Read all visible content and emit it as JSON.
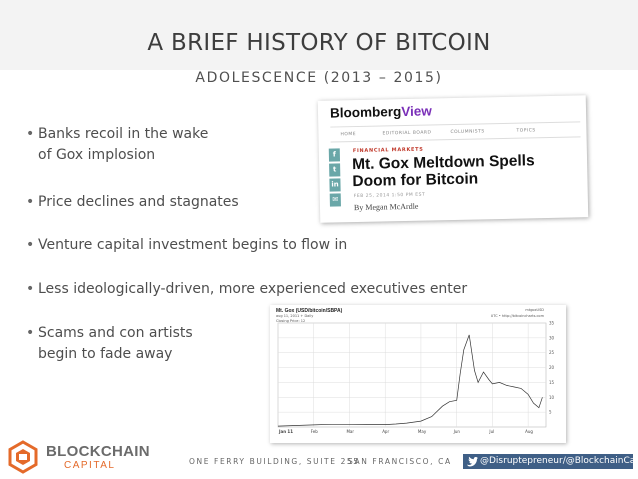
{
  "title": "A BRIEF HISTORY OF BITCOIN",
  "subtitle": "ADOLESCENCE (2013 – 2015)",
  "bullets": [
    {
      "line1": "Banks recoil in the wake",
      "line2": "of Gox implosion"
    },
    {
      "line1": "Price declines and stagnates",
      "line2": ""
    },
    {
      "line1": "Venture capital investment begins to flow in",
      "line2": ""
    },
    {
      "line1": "Less ideologically-driven, more experienced executives enter",
      "line2": ""
    },
    {
      "line1": "Scams and con artists",
      "line2": "begin to fade away"
    }
  ],
  "bloomberg": {
    "logo_main": "Bloomberg",
    "logo_view": "View",
    "nav": [
      "HOME",
      "EDITORIAL BOARD",
      "COLUMNISTS",
      "TOPICS"
    ],
    "social": [
      "f",
      "t",
      "in",
      "✉"
    ],
    "kicker": "FINANCIAL MARKETS",
    "headline": "Mt. Gox Meltdown Spells Doom for Bitcoin",
    "date": "FEB 25, 2014 1:50 PM EST",
    "byline": "By Megan McArdle"
  },
  "price_chart": {
    "title": "Mt. Gox (USD/bitcoin/SBPA)",
    "info": "aug 11, 2011 + Daily",
    "legend": "Closing Price: 12",
    "right_top": "mtgoxUSD",
    "right_info": "UTC • http://bitcoincharts.com"
  },
  "chart_data": {
    "type": "line",
    "title": "Mt. Gox (USD/bitcoin/SBPA)",
    "x_tick_labels": [
      "Jan 11",
      "Feb",
      "Mar",
      "Apr",
      "May",
      "Jun",
      "Jul",
      "Aug"
    ],
    "y_tick_labels": [
      "5",
      "10",
      "15",
      "20",
      "25",
      "30",
      "35"
    ],
    "ylim": [
      0,
      35
    ],
    "xlim": [
      0,
      7.5
    ],
    "series": [
      {
        "name": "Closing Price",
        "x": [
          0,
          0.5,
          1.0,
          1.5,
          2.0,
          2.5,
          3.0,
          3.3,
          3.6,
          4.0,
          4.3,
          4.6,
          4.8,
          5.0,
          5.1,
          5.2,
          5.35,
          5.5,
          5.6,
          5.75,
          5.9,
          6.0,
          6.2,
          6.4,
          6.6,
          6.8,
          7.0,
          7.15,
          7.3,
          7.4
        ],
        "values": [
          0.3,
          0.5,
          0.7,
          0.9,
          0.9,
          0.8,
          0.8,
          1.0,
          1.3,
          2.0,
          3.5,
          7.0,
          8.5,
          9.0,
          18.0,
          26.0,
          31.0,
          19.0,
          15.0,
          18.5,
          16.0,
          14.5,
          15.0,
          14.0,
          13.5,
          13.0,
          11.0,
          8.0,
          6.5,
          10.0
        ]
      }
    ],
    "grid": true
  },
  "footer": {
    "logo_word1": "BLOCKCHAIN",
    "logo_word2": "CAPITAL",
    "address": "ONE FERRY BUILDING, SUITE 255",
    "city": "SAN FRANCISCO, CA",
    "twitter": "@Disruptepreneur/@BlockchainCap"
  },
  "colors": {
    "accent_orange": "#e46a2a",
    "twitter_bar": "#3f5f86",
    "bloomberg_view": "#7a2fb8"
  }
}
